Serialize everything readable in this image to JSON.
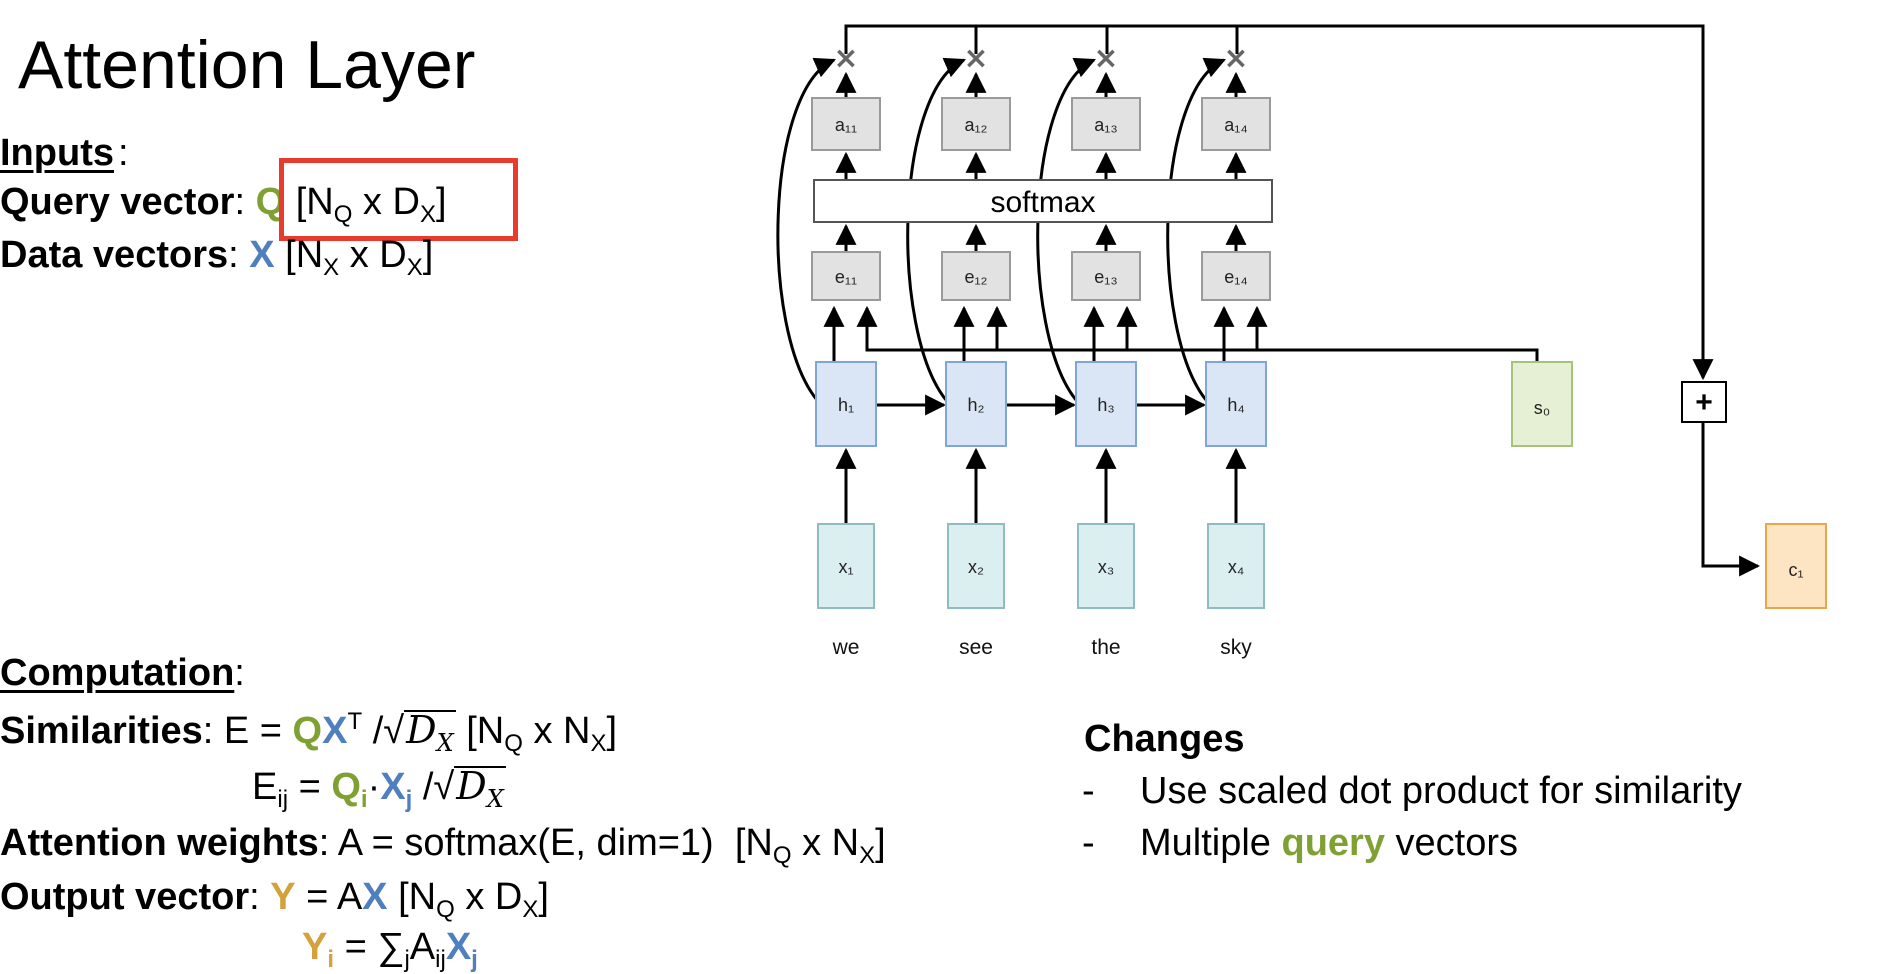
{
  "title": "Attention Layer",
  "inputs": {
    "heading": "Inputs",
    "query_label": "Query vector",
    "query_symbol": "Q",
    "query_shape_open": "[N",
    "query_shape_sub1": "Q",
    "query_shape_mid": " x D",
    "query_shape_sub2": "X",
    "query_shape_close": "]",
    "data_label": "Data vectors",
    "data_symbol": "X",
    "data_shape_open": "[N",
    "data_shape_sub1": "X",
    "data_shape_mid": " x D",
    "data_shape_sub2": "X",
    "data_shape_close": "]"
  },
  "computation": {
    "heading": "Computation",
    "similarities_label": "Similarities",
    "attention_label": "Attention weights",
    "attention_formula": "A = softmax(E, dim=1)",
    "output_label": "Output vector"
  },
  "changes": {
    "heading": "Changes",
    "item1": "Use scaled dot product for similarity",
    "item2_prefix": "Multiple ",
    "item2_highlight": "query",
    "item2_suffix": " vectors",
    "bullet": "-"
  },
  "diagram": {
    "words": [
      "we",
      "see",
      "the",
      "sky"
    ],
    "x_labels": [
      "x₁",
      "x₂",
      "x₃",
      "x₄"
    ],
    "h_labels": [
      "h₁",
      "h₂",
      "h₃",
      "h₄"
    ],
    "e_labels": [
      "e₁₁",
      "e₁₂",
      "e₁₃",
      "e₁₄"
    ],
    "a_labels": [
      "a₁₁",
      "a₁₂",
      "a₁₃",
      "a₁₄"
    ],
    "softmax_label": "softmax",
    "s_label": "s₀",
    "c_label": "c₁",
    "plus_label": "+",
    "times_label": "×",
    "colors": {
      "query_green": "#7fa134",
      "data_blue": "#4f7fbf",
      "output_gold": "#d4a23c",
      "highlight_red": "#e63b2e",
      "x_fill": "#dbeef0",
      "x_stroke": "#8fbcc2",
      "h_fill": "#dae6f5",
      "h_stroke": "#7ea6d6",
      "gray_fill": "#e2e2e2",
      "gray_stroke": "#9a9a9a",
      "s_fill": "#e6f0d4",
      "s_stroke": "#a5c47a",
      "c_fill": "#fde5c4",
      "c_stroke": "#e8a84a"
    }
  }
}
